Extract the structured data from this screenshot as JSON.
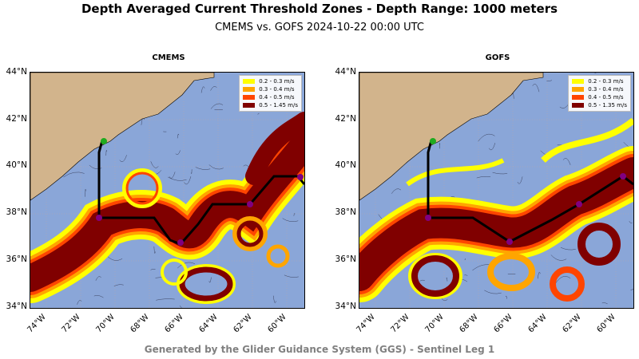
{
  "title": "Depth Averaged Current Threshold Zones - Depth Range: 1000 meters",
  "subtitle": "CMEMS vs. GOFS 2024-10-22 00:00 UTC",
  "footer": "Generated by the Glider Guidance System (GGS) - Sentinel Leg 1",
  "colors": {
    "ocean": "#8aa6d8",
    "land": "#d2b48c",
    "level1": "#ffff00",
    "level2": "#ffa500",
    "level3": "#ff4500",
    "level4": "#800000"
  },
  "y_ticks": [
    "44°N",
    "42°N",
    "40°N",
    "38°N",
    "36°N",
    "34°N"
  ],
  "x_ticks": [
    "74°W",
    "72°W",
    "70°W",
    "68°W",
    "66°W",
    "64°W",
    "62°W",
    "60°W"
  ],
  "panels": [
    {
      "name": "CMEMS",
      "legend": [
        "0.2 - 0.3 m/s",
        "0.3 - 0.4 m/s",
        "0.4 - 0.5 m/s",
        "0.5 - 1.45 m/s"
      ]
    },
    {
      "name": "GOFS",
      "legend": [
        "0.2 - 0.3 m/s",
        "0.3 - 0.4 m/s",
        "0.4 - 0.5 m/s",
        "0.5 - 1.35 m/s"
      ]
    }
  ]
}
